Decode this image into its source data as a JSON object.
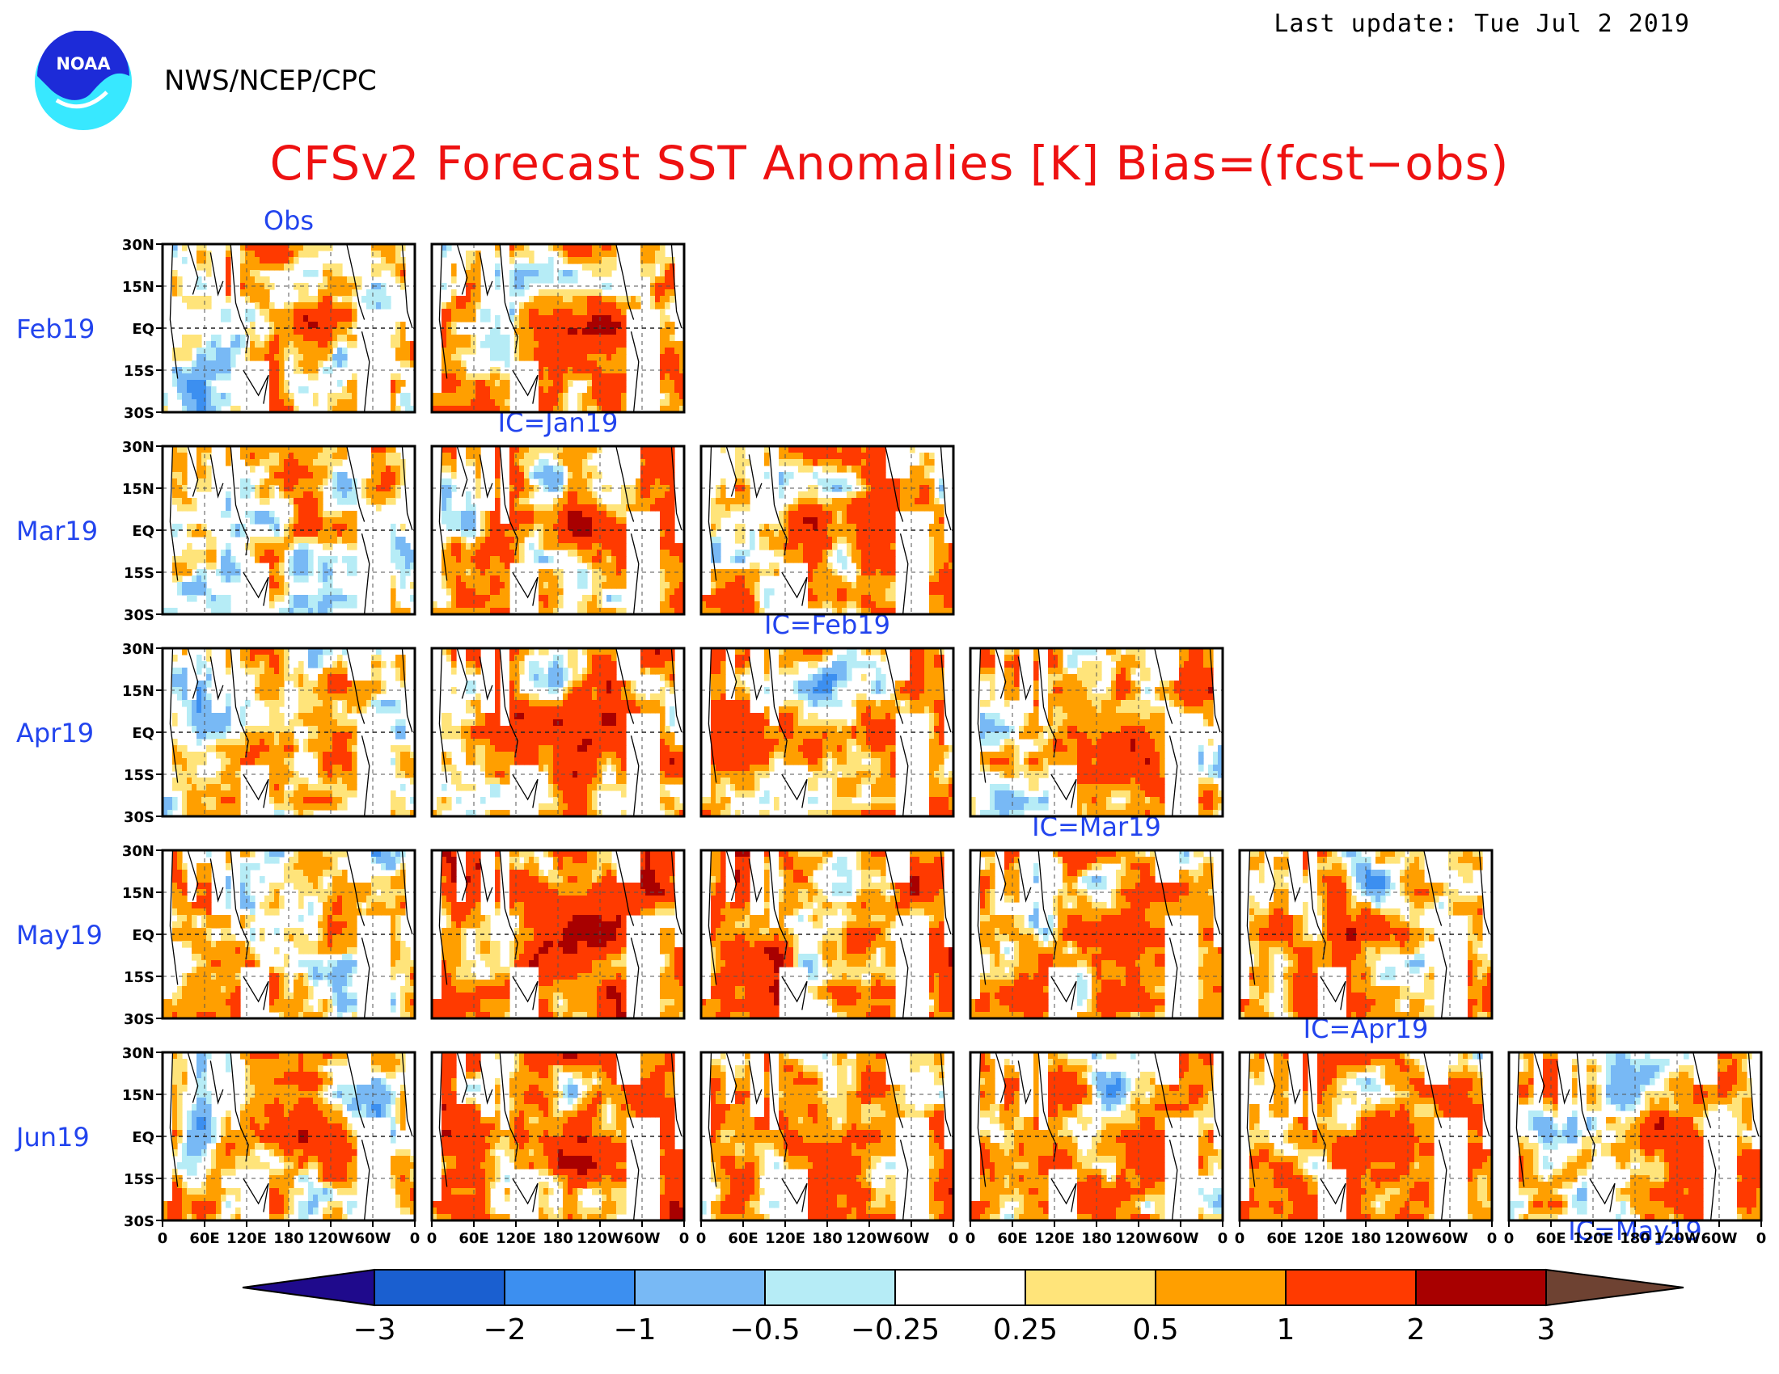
{
  "header": {
    "agency": "NWS/NCEP/CPC",
    "last_update": "Last update: Tue Jul 2 2019",
    "logo_text": "NOAA"
  },
  "chart_data": {
    "type": "heatmap",
    "title": "CFSv2 Forecast SST Anomalies [K] Bias=(fcst−obs)",
    "rows": [
      "Feb19",
      "Mar19",
      "Apr19",
      "May19",
      "Jun19"
    ],
    "columns": [
      "Obs",
      "IC=Jan19",
      "IC=Feb19",
      "IC=Mar19",
      "IC=Apr19",
      "IC=May19"
    ],
    "panel_grid": "lower-triangular: row i shows Obs plus forecasts from the first i+1 initial conditions",
    "y_ticks": [
      "30N",
      "15N",
      "EQ",
      "15S",
      "30S"
    ],
    "x_ticks": [
      "0",
      "60E",
      "120E",
      "180",
      "120W",
      "60W",
      "0"
    ],
    "x_range": [
      "0",
      "360"
    ],
    "y_range": [
      "30S",
      "30N"
    ],
    "colorbar": {
      "levels": [
        "−3",
        "−2",
        "−1",
        "−0.5",
        "−0.25",
        "0.25",
        "0.5",
        "1",
        "2",
        "3"
      ],
      "colors": [
        "#1f0a8c",
        "#1a5fd0",
        "#3c8ff0",
        "#78b9f5",
        "#b6ecf6",
        "#ffffff",
        "#ffe47a",
        "#ff9f00",
        "#ff3a00",
        "#a80000",
        "#6e4232"
      ]
    }
  }
}
